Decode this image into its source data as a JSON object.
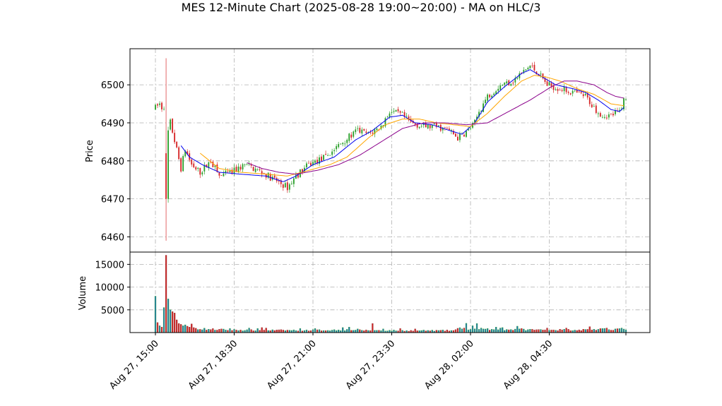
{
  "chart_data": {
    "type": "candlestick",
    "title": "MES 12-Minute Chart (2025-08-28 19:00~20:00) - MA on HLC/3",
    "price_panel": {
      "ylabel": "Price",
      "ylim": [
        6456,
        6509.5
      ],
      "yticks": [
        6460,
        6470,
        6480,
        6490,
        6500
      ],
      "up_color": "#2ca02c",
      "down_color": "#d62728",
      "price_anchors": [
        [
          0,
          6494
        ],
        [
          2,
          6495
        ],
        [
          3,
          6494
        ],
        [
          5,
          6495
        ],
        [
          12,
          6478
        ],
        [
          14,
          6483
        ],
        [
          17,
          6479
        ],
        [
          21,
          6477
        ],
        [
          26,
          6480
        ],
        [
          30,
          6476
        ],
        [
          36,
          6477
        ],
        [
          42,
          6479
        ],
        [
          50,
          6477
        ],
        [
          56,
          6475
        ],
        [
          62,
          6473
        ],
        [
          66,
          6476
        ],
        [
          72,
          6479
        ],
        [
          80,
          6481
        ],
        [
          88,
          6485
        ],
        [
          95,
          6488
        ],
        [
          100,
          6487
        ],
        [
          106,
          6489
        ],
        [
          110,
          6493
        ],
        [
          116,
          6492
        ],
        [
          120,
          6490
        ],
        [
          126,
          6489
        ],
        [
          132,
          6489
        ],
        [
          138,
          6488
        ],
        [
          142,
          6486
        ],
        [
          147,
          6488
        ],
        [
          150,
          6490
        ],
        [
          152,
          6493
        ],
        [
          156,
          6497
        ],
        [
          162,
          6500
        ],
        [
          168,
          6501
        ],
        [
          172,
          6503
        ],
        [
          176,
          6505
        ],
        [
          180,
          6503
        ],
        [
          184,
          6500
        ],
        [
          190,
          6499
        ],
        [
          196,
          6498
        ],
        [
          202,
          6497
        ],
        [
          206,
          6494
        ],
        [
          210,
          6492
        ],
        [
          214,
          6492
        ],
        [
          218,
          6493
        ],
        [
          220,
          6496
        ]
      ],
      "moving_averages": [
        {
          "name": "MA short",
          "color": "#0000ee",
          "anchors": [
            [
              12,
              6484
            ],
            [
              16,
              6481
            ],
            [
              22,
              6479
            ],
            [
              30,
              6477
            ],
            [
              40,
              6476.5
            ],
            [
              52,
              6476
            ],
            [
              60,
              6474.5
            ],
            [
              66,
              6476
            ],
            [
              74,
              6479
            ],
            [
              84,
              6481
            ],
            [
              94,
              6485.5
            ],
            [
              102,
              6488
            ],
            [
              110,
              6491.5
            ],
            [
              116,
              6492
            ],
            [
              122,
              6490
            ],
            [
              130,
              6489.5
            ],
            [
              138,
              6488
            ],
            [
              144,
              6487
            ],
            [
              150,
              6490
            ],
            [
              156,
              6495.5
            ],
            [
              164,
              6499.5
            ],
            [
              172,
              6503
            ],
            [
              176,
              6504
            ],
            [
              182,
              6502
            ],
            [
              188,
              6500
            ],
            [
              196,
              6499
            ],
            [
              202,
              6498
            ],
            [
              208,
              6496
            ],
            [
              214,
              6493.5
            ],
            [
              218,
              6493
            ],
            [
              220,
              6494
            ]
          ]
        },
        {
          "name": "MA medium",
          "color": "#ffa500",
          "anchors": [
            [
              21,
              6482
            ],
            [
              30,
              6478
            ],
            [
              40,
              6477
            ],
            [
              52,
              6476.5
            ],
            [
              62,
              6476
            ],
            [
              72,
              6477.5
            ],
            [
              82,
              6479
            ],
            [
              90,
              6481
            ],
            [
              100,
              6486
            ],
            [
              108,
              6489.5
            ],
            [
              116,
              6491
            ],
            [
              124,
              6491
            ],
            [
              132,
              6490
            ],
            [
              140,
              6489.5
            ],
            [
              148,
              6489
            ],
            [
              156,
              6492.5
            ],
            [
              164,
              6497
            ],
            [
              172,
              6501
            ],
            [
              178,
              6502.5
            ],
            [
              184,
              6502
            ],
            [
              190,
              6501
            ],
            [
              198,
              6499
            ],
            [
              206,
              6497.5
            ],
            [
              214,
              6495
            ],
            [
              220,
              6494.5
            ]
          ]
        },
        {
          "name": "MA long",
          "color": "#8b008b",
          "anchors": [
            [
              43,
              6479.5
            ],
            [
              50,
              6478
            ],
            [
              58,
              6477
            ],
            [
              66,
              6476.5
            ],
            [
              76,
              6477.5
            ],
            [
              86,
              6479
            ],
            [
              96,
              6481.5
            ],
            [
              106,
              6485
            ],
            [
              116,
              6488.5
            ],
            [
              126,
              6490
            ],
            [
              136,
              6490
            ],
            [
              146,
              6489.5
            ],
            [
              156,
              6490
            ],
            [
              166,
              6493
            ],
            [
              176,
              6496
            ],
            [
              186,
              6499.5
            ],
            [
              192,
              6501
            ],
            [
              198,
              6501
            ],
            [
              206,
              6500
            ],
            [
              212,
              6498
            ],
            [
              216,
              6497
            ],
            [
              220,
              6496.5
            ]
          ]
        }
      ]
    },
    "volume_panel": {
      "ylabel": "Volume",
      "ylim": [
        0,
        17700
      ],
      "yticks": [
        5000,
        10000,
        15000
      ],
      "tick_labels": [
        "5000",
        "10000",
        "15000"
      ],
      "volume_anchors": [
        [
          0,
          8000
        ],
        [
          1,
          2200
        ],
        [
          2,
          1500
        ],
        [
          3,
          1200
        ],
        [
          4,
          5500
        ],
        [
          5,
          17000
        ],
        [
          6,
          7400
        ],
        [
          7,
          5000
        ],
        [
          8,
          4600
        ],
        [
          9,
          4300
        ],
        [
          10,
          2800
        ],
        [
          11,
          2000
        ],
        [
          12,
          1800
        ],
        [
          13,
          1500
        ],
        [
          14,
          1700
        ],
        [
          15,
          1400
        ],
        [
          16,
          1200
        ],
        [
          17,
          1900
        ],
        [
          18,
          1100
        ],
        [
          19,
          950
        ],
        [
          22,
          800
        ],
        [
          30,
          650
        ],
        [
          40,
          550
        ],
        [
          60,
          500
        ],
        [
          80,
          520
        ],
        [
          90,
          600
        ],
        [
          100,
          480
        ],
        [
          120,
          420
        ],
        [
          140,
          450
        ],
        [
          145,
          1200
        ],
        [
          146,
          1800
        ],
        [
          147,
          700
        ],
        [
          150,
          650
        ],
        [
          160,
          600
        ],
        [
          170,
          700
        ],
        [
          180,
          600
        ],
        [
          200,
          600
        ],
        [
          220,
          800
        ]
      ],
      "volume_spikes": [
        [
          35,
          900
        ],
        [
          44,
          1000
        ],
        [
          48,
          900
        ],
        [
          50,
          1100
        ],
        [
          52,
          1000
        ],
        [
          68,
          900
        ],
        [
          75,
          900
        ],
        [
          88,
          1100
        ],
        [
          91,
          1200
        ],
        [
          95,
          800
        ],
        [
          102,
          2000
        ],
        [
          107,
          800
        ],
        [
          115,
          900
        ],
        [
          122,
          800
        ],
        [
          149,
          1500
        ],
        [
          151,
          2000
        ],
        [
          153,
          1000
        ],
        [
          156,
          900
        ],
        [
          160,
          1200
        ],
        [
          162,
          1000
        ],
        [
          163,
          1100
        ],
        [
          170,
          1400
        ],
        [
          172,
          900
        ],
        [
          184,
          1000
        ],
        [
          193,
          1000
        ],
        [
          204,
          1300
        ],
        [
          212,
          1000
        ]
      ]
    },
    "x_axis": {
      "tick_labels": [
        "Aug 27, 15:00",
        "Aug 27, 18:30",
        "Aug 27, 21:00",
        "Aug 27, 23:30",
        "Aug 28, 02:00",
        "Aug 28, 04:30",
        ""
      ],
      "tick_positions": [
        0,
        37,
        74,
        111,
        148,
        185,
        221
      ]
    },
    "candle_count": 222,
    "grid": true
  }
}
